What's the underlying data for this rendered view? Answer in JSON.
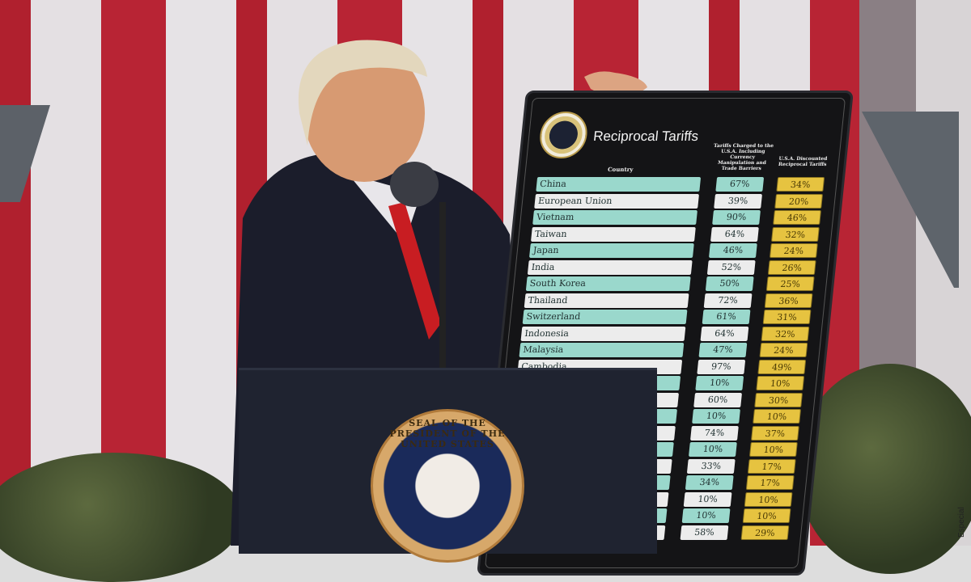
{
  "board": {
    "title": "Reciprocal Tariffs",
    "header_country": "Country",
    "header_charged": "Tariffs Charged to the U.S.A. Including Currency Manipulation and Trade Barriers",
    "header_reciprocal": "U.S.A. Discounted Reciprocal Tariffs",
    "rows": [
      {
        "country": "China",
        "charged": "67%",
        "reciprocal": "34%"
      },
      {
        "country": "European Union",
        "charged": "39%",
        "reciprocal": "20%"
      },
      {
        "country": "Vietnam",
        "charged": "90%",
        "reciprocal": "46%"
      },
      {
        "country": "Taiwan",
        "charged": "64%",
        "reciprocal": "32%"
      },
      {
        "country": "Japan",
        "charged": "46%",
        "reciprocal": "24%"
      },
      {
        "country": "India",
        "charged": "52%",
        "reciprocal": "26%"
      },
      {
        "country": "South Korea",
        "charged": "50%",
        "reciprocal": "25%"
      },
      {
        "country": "Thailand",
        "charged": "72%",
        "reciprocal": "36%"
      },
      {
        "country": "Switzerland",
        "charged": "61%",
        "reciprocal": "31%"
      },
      {
        "country": "Indonesia",
        "charged": "64%",
        "reciprocal": "32%"
      },
      {
        "country": "Malaysia",
        "charged": "47%",
        "reciprocal": "24%"
      },
      {
        "country": "Cambodia",
        "charged": "97%",
        "reciprocal": "49%"
      },
      {
        "country": "",
        "charged": "10%",
        "reciprocal": "10%"
      },
      {
        "country": "",
        "charged": "60%",
        "reciprocal": "30%"
      },
      {
        "country": "",
        "charged": "10%",
        "reciprocal": "10%"
      },
      {
        "country": "",
        "charged": "74%",
        "reciprocal": "37%"
      },
      {
        "country": "",
        "charged": "10%",
        "reciprocal": "10%"
      },
      {
        "country": "",
        "charged": "33%",
        "reciprocal": "17%"
      },
      {
        "country": "",
        "charged": "34%",
        "reciprocal": "17%"
      },
      {
        "country": "",
        "charged": "10%",
        "reciprocal": "10%"
      },
      {
        "country": "",
        "charged": "10%",
        "reciprocal": "10%"
      },
      {
        "country": "",
        "charged": "58%",
        "reciprocal": "29%"
      }
    ]
  },
  "podium": {
    "seal_text": "SEAL OF THE PRESIDENT OF THE UNITED STATES"
  },
  "watermark": "Especial",
  "colors": {
    "teal_row": "#9ad8cc",
    "white_row": "#ececec",
    "gold_cell": "#e6c340",
    "board": "#141416",
    "flag_red": "#b0202e"
  }
}
